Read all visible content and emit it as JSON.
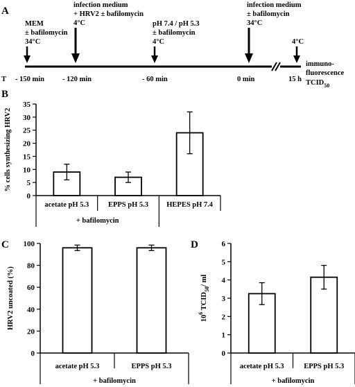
{
  "panels": {
    "a": "A",
    "b": "B",
    "c": "C",
    "d": "D"
  },
  "timeline": {
    "axis_label": "T",
    "times": [
      "- 150 min",
      "- 120 min",
      "- 60 min",
      "0 min",
      "15 h"
    ],
    "events": [
      {
        "lines": [
          "MEM",
          "± bafilomycin",
          "34°C"
        ]
      },
      {
        "lines": [
          "infection medium",
          "+ HRV2 ± bafilomycin",
          "4°C"
        ]
      },
      {
        "lines": [
          "pH 7.4 / pH 5.3",
          "± bafilomycin",
          "4°C"
        ]
      },
      {
        "lines": [
          "infection medium",
          "± bafilomycin",
          "34°C"
        ]
      },
      {
        "lines": [
          "4°C"
        ]
      }
    ],
    "readout": [
      "immuno-",
      "fluorescence",
      "TCID"
    ],
    "readout_sub": "50"
  },
  "chart_data": [
    {
      "id": "B",
      "type": "bar",
      "categories": [
        "acetate pH 5.3",
        "EPPS pH 5.3",
        "HEPES pH 7.4"
      ],
      "values": [
        9,
        7,
        24
      ],
      "errors": [
        3,
        2,
        8
      ],
      "ylabel": "% cells synthesizing HRV2",
      "ylim": [
        0,
        35
      ],
      "yticks": [
        0,
        5,
        10,
        15,
        20,
        25,
        30,
        35
      ],
      "group_label": "+ bafilomycin"
    },
    {
      "id": "C",
      "type": "bar",
      "categories": [
        "acetate pH 5.3",
        "EPPS pH 5.3"
      ],
      "values": [
        96,
        96
      ],
      "errors": [
        2.5,
        2.5
      ],
      "ylabel": "HRV2 uncoated (%)",
      "ylim": [
        0,
        100
      ],
      "yticks": [
        0,
        20,
        40,
        60,
        80,
        100
      ],
      "group_label": "+ bafilomycin"
    },
    {
      "id": "D",
      "type": "bar",
      "categories": [
        "acetate pH 5.3",
        "EPPS pH 5.3"
      ],
      "values": [
        3.25,
        4.15
      ],
      "errors": [
        0.6,
        0.65
      ],
      "ylabel_parts": [
        "10",
        "6",
        " TCID",
        "50",
        "/ ml"
      ],
      "ylim": [
        0,
        6
      ],
      "yticks": [
        0,
        1,
        2,
        3,
        4,
        5,
        6
      ],
      "group_label": "+ bafilomycin"
    }
  ]
}
